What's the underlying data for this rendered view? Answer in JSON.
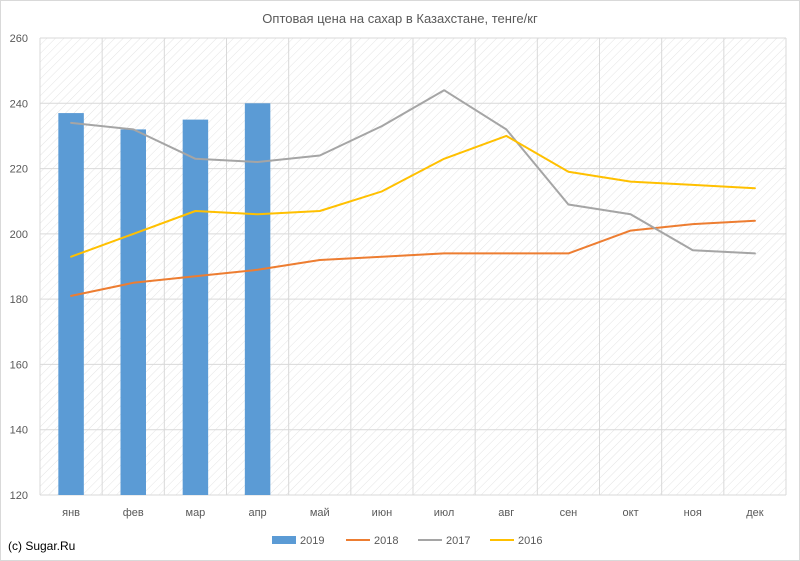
{
  "chart_data": {
    "type": "bar+line",
    "title": "Оптовая цена на сахар в Казахстане, тенге/кг",
    "credit": "(c) Sugar.Ru",
    "categories": [
      "янв",
      "фев",
      "мар",
      "апр",
      "май",
      "июн",
      "июл",
      "авг",
      "сен",
      "окт",
      "ноя",
      "дек"
    ],
    "ylim": [
      120,
      260
    ],
    "yticks": [
      120,
      140,
      160,
      180,
      200,
      220,
      240,
      260
    ],
    "grid": true,
    "legend": "bottom",
    "series": [
      {
        "name": "2019",
        "kind": "bar",
        "color": "#5b9bd5",
        "values": [
          237,
          232,
          235,
          240,
          null,
          null,
          null,
          null,
          null,
          null,
          null,
          null
        ]
      },
      {
        "name": "2018",
        "kind": "line",
        "color": "#ed7d31",
        "values": [
          181,
          185,
          187,
          189,
          192,
          193,
          194,
          194,
          194,
          201,
          203,
          204
        ]
      },
      {
        "name": "2017",
        "kind": "line",
        "color": "#a5a5a5",
        "values": [
          234,
          232,
          223,
          222,
          224,
          233,
          244,
          232,
          209,
          206,
          195,
          194
        ]
      },
      {
        "name": "2016",
        "kind": "line",
        "color": "#ffc000",
        "values": [
          193,
          200,
          207,
          206,
          207,
          213,
          223,
          230,
          219,
          216,
          215,
          214
        ]
      }
    ]
  }
}
